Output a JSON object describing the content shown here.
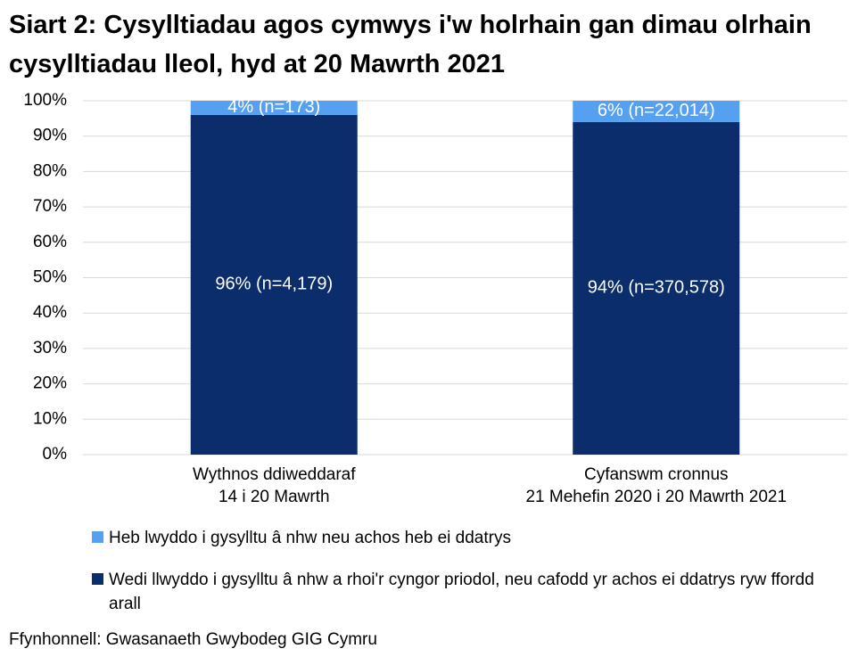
{
  "chart_data": {
    "type": "stacked-bar",
    "title": "Siart 2: Cysylltiadau agos cymwys i'w holrhain gan dimau olrhain cysylltiadau lleol, hyd at 20 Mawrth 2021",
    "categories": [
      "Wythnos ddiweddaraf\n14 i 20 Mawrth",
      "Cyfanswm cronnus\n21 Mehefin 2020 i 20 Mawrth 2021"
    ],
    "series": [
      {
        "name": "Wedi llwyddo i gysylltu â nhw a rhoi'r cyngor priodol, neu cafodd yr achos ei ddatrys ryw ffordd arall",
        "color": "#0b2d6b",
        "values": [
          96,
          94
        ],
        "value_labels": [
          "96% (n=4,179)",
          "94% (n=370,578)"
        ]
      },
      {
        "name": "Heb lwyddo i gysylltu â nhw neu achos heb ei ddatrys",
        "color": "#55a0f0",
        "values": [
          4,
          6
        ],
        "value_labels": [
          "4% (n=173)",
          "6% (n=22,014)"
        ]
      }
    ],
    "ylim": [
      0,
      100
    ],
    "yticks": [
      {
        "value": 0,
        "label": "0%"
      },
      {
        "value": 10,
        "label": "10%"
      },
      {
        "value": 20,
        "label": "20%"
      },
      {
        "value": 30,
        "label": "30%"
      },
      {
        "value": 40,
        "label": "40%"
      },
      {
        "value": 50,
        "label": "50%"
      },
      {
        "value": 60,
        "label": "60%"
      },
      {
        "value": 70,
        "label": "70%"
      },
      {
        "value": 80,
        "label": "80%"
      },
      {
        "value": 90,
        "label": "90%"
      },
      {
        "value": 100,
        "label": "100%"
      }
    ],
    "grid": true,
    "source": "Ffynhonnell: Gwasanaeth Gwybodeg GIG Cymru"
  }
}
